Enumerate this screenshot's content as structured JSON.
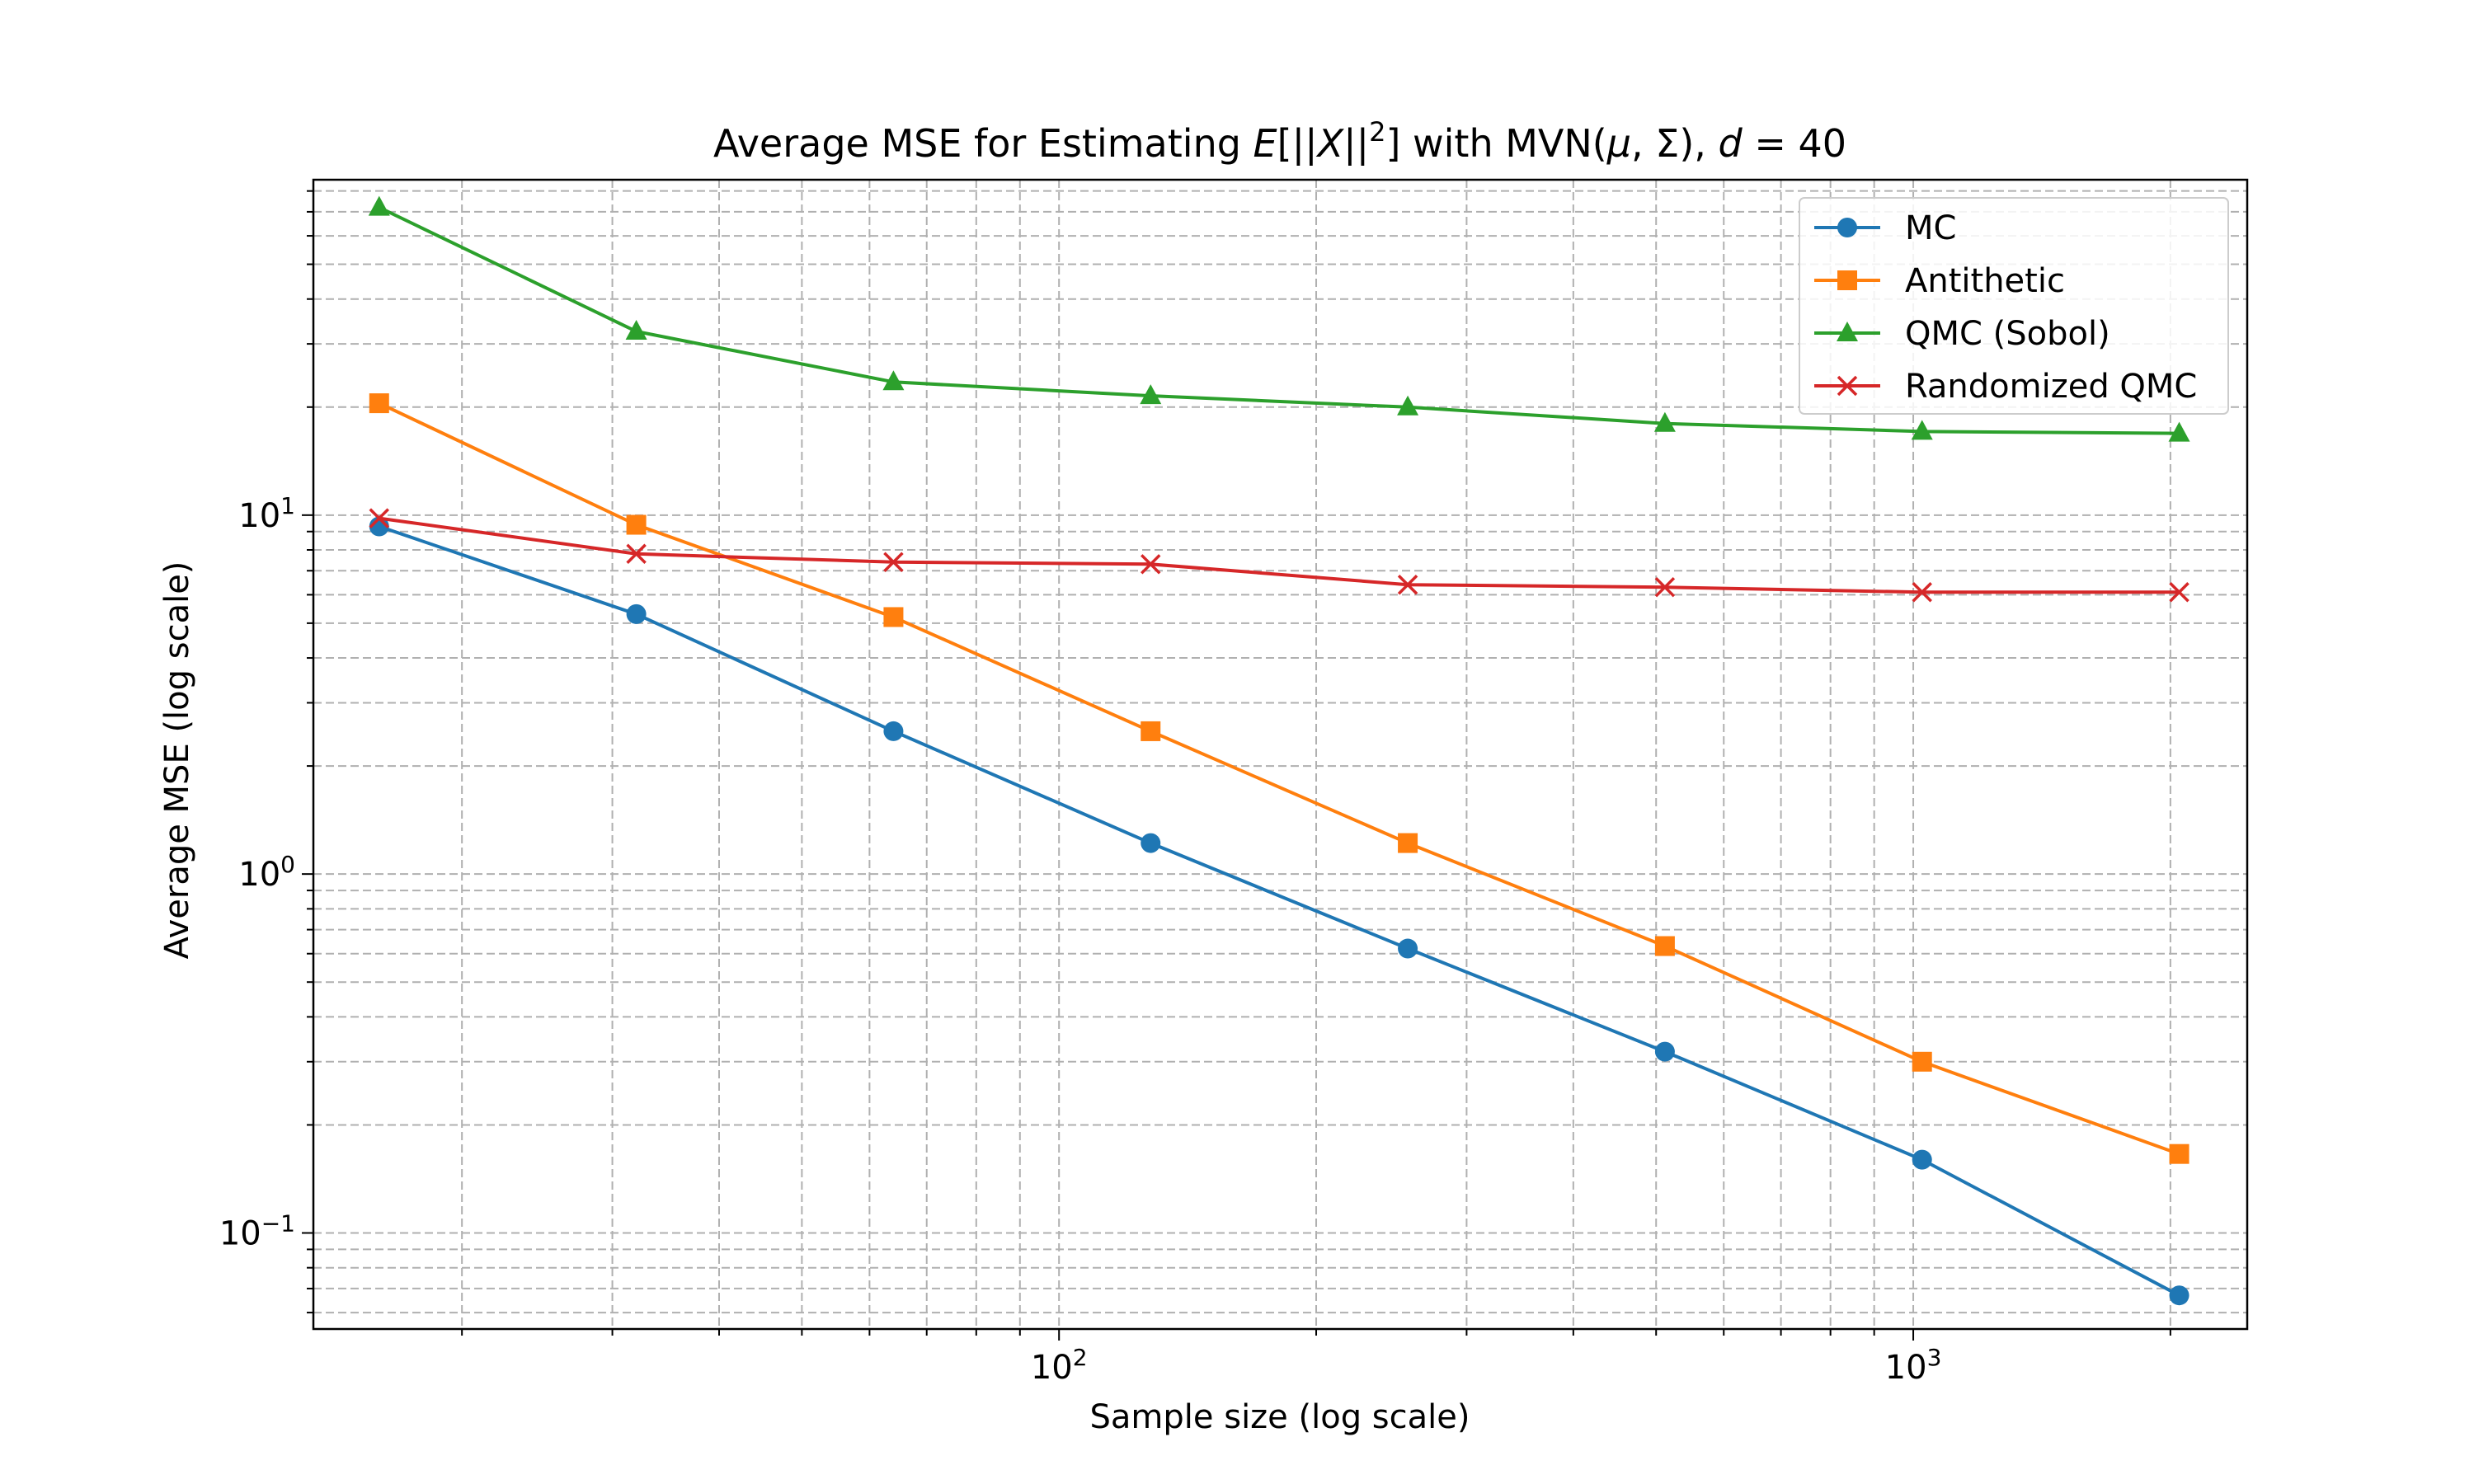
{
  "chart_data": {
    "type": "line",
    "title_parts": [
      {
        "text": "Average MSE for Estimating "
      },
      {
        "text": "E",
        "italic": true
      },
      {
        "text": "[||"
      },
      {
        "text": "X",
        "italic": true
      },
      {
        "text": "||"
      },
      {
        "text": "2",
        "sup": true
      },
      {
        "text": "] with MVN("
      },
      {
        "text": "μ",
        "italic": true
      },
      {
        "text": ", Σ), "
      },
      {
        "text": "d",
        "italic": true
      },
      {
        "text": " = 40"
      }
    ],
    "xlabel": "Sample size (log scale)",
    "ylabel": "Average MSE (log scale)",
    "xscale": "log",
    "yscale": "log",
    "xlim": [
      13.4,
      2460
    ],
    "ylim": [
      0.054,
      86
    ],
    "x_ticks": [
      {
        "base": "10",
        "exp": "2",
        "value": 100
      },
      {
        "base": "10",
        "exp": "3",
        "value": 1000
      }
    ],
    "y_ticks": [
      {
        "base": "10",
        "exp": "−1",
        "value": 0.1
      },
      {
        "base": "10",
        "exp": "0",
        "value": 1
      },
      {
        "base": "10",
        "exp": "1",
        "value": 10
      }
    ],
    "grid": true,
    "legend_position": "upper right",
    "x": [
      16,
      32,
      64,
      128,
      256,
      512,
      1024,
      2048
    ],
    "series": [
      {
        "name": "MC",
        "color": "#1f77b4",
        "marker": "circle",
        "values": [
          9.3,
          5.3,
          2.5,
          1.22,
          0.62,
          0.32,
          0.16,
          0.067
        ]
      },
      {
        "name": "Antithetic",
        "color": "#ff7f0e",
        "marker": "square",
        "values": [
          20.5,
          9.4,
          5.2,
          2.5,
          1.22,
          0.63,
          0.3,
          0.166
        ]
      },
      {
        "name": "QMC (Sobol)",
        "color": "#2ca02c",
        "marker": "triangle",
        "values": [
          72,
          32.5,
          23.5,
          21.5,
          20,
          18,
          17.1,
          16.9
        ]
      },
      {
        "name": "Randomized QMC",
        "color": "#d62728",
        "marker": "x",
        "values": [
          9.8,
          7.8,
          7.4,
          7.3,
          6.4,
          6.3,
          6.1,
          6.1
        ]
      }
    ]
  }
}
